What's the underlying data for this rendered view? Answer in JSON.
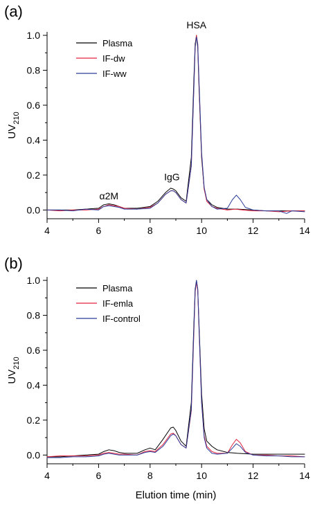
{
  "chart_data": [
    {
      "type": "line",
      "panel_label": "(a)",
      "xlabel": "",
      "ylabel_main": "UV",
      "ylabel_sub": "210",
      "xlim": [
        4,
        14
      ],
      "ylim": [
        -0.05,
        1.0
      ],
      "xticks": [
        4,
        6,
        8,
        10,
        12,
        14
      ],
      "yticks": [
        0.0,
        0.2,
        0.4,
        0.6,
        0.8,
        1.0
      ],
      "ytick_labels": [
        "0.0",
        "0.2",
        "0.4",
        "0.6",
        "0.8",
        "1.0"
      ],
      "grid": false,
      "legend_position": "top-left",
      "annotations": [
        {
          "text": "α2M",
          "x": 6.4,
          "y": 0.06
        },
        {
          "text": "IgG",
          "x": 8.85,
          "y": 0.17
        },
        {
          "text": "HSA",
          "x": 9.8,
          "y": 1.04
        }
      ],
      "series": [
        {
          "name": "Plasma",
          "color": "#000000",
          "x": [
            4.0,
            4.5,
            5.0,
            5.5,
            6.0,
            6.2,
            6.4,
            6.6,
            6.8,
            7.0,
            7.5,
            8.0,
            8.3,
            8.6,
            8.8,
            8.9,
            9.0,
            9.2,
            9.4,
            9.6,
            9.7,
            9.75,
            9.8,
            9.85,
            9.9,
            10.0,
            10.1,
            10.2,
            10.4,
            10.6,
            11.0,
            11.4,
            12.0,
            12.5,
            13.0,
            13.5,
            14.0
          ],
          "y": [
            0.0,
            0.0,
            0.0,
            0.005,
            0.01,
            0.03,
            0.035,
            0.03,
            0.02,
            0.01,
            0.01,
            0.02,
            0.05,
            0.1,
            0.125,
            0.12,
            0.11,
            0.07,
            0.05,
            0.3,
            0.75,
            0.95,
            1.0,
            0.93,
            0.7,
            0.3,
            0.12,
            0.06,
            0.03,
            0.015,
            0.005,
            0.005,
            0.0,
            -0.005,
            -0.005,
            -0.005,
            -0.005
          ]
        },
        {
          "name": "IF-dw",
          "color": "#e0203c",
          "x": [
            4.0,
            4.5,
            5.0,
            5.5,
            6.0,
            6.2,
            6.4,
            6.6,
            6.8,
            7.0,
            7.5,
            8.0,
            8.3,
            8.6,
            8.8,
            8.9,
            9.0,
            9.2,
            9.4,
            9.6,
            9.7,
            9.75,
            9.8,
            9.85,
            9.9,
            10.0,
            10.1,
            10.2,
            10.4,
            10.6,
            11.0,
            11.3,
            11.6,
            12.0,
            12.5,
            13.0,
            13.5,
            14.0
          ],
          "y": [
            0.0,
            -0.005,
            0.0,
            0.0,
            0.005,
            0.02,
            0.03,
            0.025,
            0.02,
            0.01,
            0.005,
            0.015,
            0.04,
            0.09,
            0.11,
            0.11,
            0.1,
            0.06,
            0.04,
            0.25,
            0.7,
            0.93,
            1.0,
            0.95,
            0.72,
            0.32,
            0.12,
            0.05,
            0.02,
            0.01,
            0.0,
            0.005,
            0.0,
            -0.005,
            -0.005,
            -0.01,
            -0.005,
            -0.005
          ]
        },
        {
          "name": "IF-ww",
          "color": "#2a3b98",
          "x": [
            4.0,
            4.5,
            5.0,
            5.5,
            6.0,
            6.2,
            6.4,
            6.6,
            6.8,
            7.0,
            7.5,
            8.0,
            8.3,
            8.6,
            8.8,
            8.9,
            9.0,
            9.2,
            9.4,
            9.6,
            9.7,
            9.75,
            9.8,
            9.85,
            9.9,
            10.0,
            10.1,
            10.2,
            10.4,
            10.6,
            11.0,
            11.2,
            11.35,
            11.5,
            11.7,
            12.0,
            12.5,
            13.0,
            13.3,
            13.5,
            14.0
          ],
          "y": [
            0.0,
            0.0,
            -0.005,
            0.005,
            0.0,
            0.02,
            0.025,
            0.02,
            0.015,
            0.005,
            0.005,
            0.01,
            0.04,
            0.09,
            0.11,
            0.11,
            0.1,
            0.06,
            0.04,
            0.25,
            0.7,
            0.93,
            0.99,
            0.95,
            0.74,
            0.33,
            0.13,
            0.06,
            0.02,
            0.005,
            0.01,
            0.06,
            0.085,
            0.06,
            0.015,
            0.0,
            -0.005,
            -0.005,
            -0.02,
            -0.005,
            -0.01
          ]
        }
      ]
    },
    {
      "type": "line",
      "panel_label": "(b)",
      "xlabel": "Elution time (min)",
      "ylabel_main": "UV",
      "ylabel_sub": "210",
      "xlim": [
        4,
        14
      ],
      "ylim": [
        -0.05,
        1.0
      ],
      "xticks": [
        4,
        6,
        8,
        10,
        12,
        14
      ],
      "yticks": [
        0.0,
        0.2,
        0.4,
        0.6,
        0.8,
        1.0
      ],
      "ytick_labels": [
        "0.0",
        "0.2",
        "0.4",
        "0.6",
        "0.8",
        "1.0"
      ],
      "grid": false,
      "legend_position": "top-left",
      "annotations": [],
      "series": [
        {
          "name": "Plasma",
          "color": "#000000",
          "x": [
            4.0,
            4.5,
            5.0,
            5.5,
            6.0,
            6.2,
            6.4,
            6.6,
            6.8,
            7.0,
            7.5,
            7.8,
            8.0,
            8.2,
            8.5,
            8.8,
            8.9,
            9.0,
            9.2,
            9.4,
            9.6,
            9.7,
            9.75,
            9.8,
            9.85,
            9.9,
            10.0,
            10.1,
            10.2,
            10.4,
            10.6,
            11.0,
            11.4,
            12.0,
            12.5,
            13.0,
            13.5,
            14.0
          ],
          "y": [
            -0.01,
            -0.01,
            -0.005,
            0.0,
            0.005,
            0.02,
            0.03,
            0.025,
            0.015,
            0.01,
            0.01,
            0.03,
            0.04,
            0.03,
            0.09,
            0.155,
            0.16,
            0.14,
            0.08,
            0.05,
            0.3,
            0.75,
            0.95,
            1.0,
            0.95,
            0.75,
            0.35,
            0.15,
            0.08,
            0.05,
            0.03,
            0.015,
            0.01,
            0.005,
            0.005,
            0.005,
            0.005,
            0.005
          ]
        },
        {
          "name": "IF-emla",
          "color": "#e0203c",
          "x": [
            4.0,
            4.5,
            5.0,
            5.5,
            6.0,
            6.2,
            6.4,
            6.6,
            6.8,
            7.0,
            7.5,
            7.8,
            8.0,
            8.2,
            8.5,
            8.8,
            8.9,
            9.0,
            9.2,
            9.4,
            9.6,
            9.7,
            9.75,
            9.8,
            9.85,
            9.9,
            10.0,
            10.1,
            10.2,
            10.4,
            10.6,
            11.0,
            11.2,
            11.35,
            11.5,
            11.7,
            12.0,
            12.5,
            13.0,
            13.5,
            14.0
          ],
          "y": [
            -0.01,
            -0.005,
            -0.005,
            -0.005,
            0.0,
            0.01,
            0.015,
            0.01,
            0.005,
            0.005,
            0.0,
            0.02,
            0.025,
            0.02,
            0.06,
            0.12,
            0.125,
            0.11,
            0.06,
            0.04,
            0.25,
            0.7,
            0.93,
            0.99,
            0.94,
            0.72,
            0.3,
            0.11,
            0.05,
            0.02,
            0.01,
            0.01,
            0.06,
            0.09,
            0.07,
            0.02,
            0.0,
            0.0,
            -0.005,
            -0.005,
            -0.01
          ]
        },
        {
          "name": "IF-control",
          "color": "#2a3b98",
          "x": [
            4.0,
            4.5,
            5.0,
            5.5,
            6.0,
            6.2,
            6.4,
            6.6,
            6.8,
            7.0,
            7.5,
            7.8,
            8.0,
            8.2,
            8.5,
            8.8,
            8.9,
            9.0,
            9.2,
            9.4,
            9.6,
            9.7,
            9.75,
            9.8,
            9.85,
            9.9,
            10.0,
            10.1,
            10.2,
            10.4,
            10.6,
            11.0,
            11.2,
            11.35,
            11.5,
            11.7,
            12.0,
            12.5,
            13.0,
            13.5,
            14.0
          ],
          "y": [
            -0.015,
            -0.015,
            -0.01,
            -0.01,
            -0.005,
            0.005,
            0.01,
            0.005,
            0.0,
            0.0,
            0.0,
            0.015,
            0.02,
            0.015,
            0.05,
            0.11,
            0.12,
            0.11,
            0.06,
            0.04,
            0.26,
            0.72,
            0.94,
            1.0,
            0.95,
            0.73,
            0.3,
            0.1,
            0.04,
            0.01,
            0.005,
            0.01,
            0.04,
            0.065,
            0.05,
            0.015,
            0.0,
            -0.005,
            -0.005,
            -0.01,
            -0.01
          ]
        }
      ]
    }
  ]
}
